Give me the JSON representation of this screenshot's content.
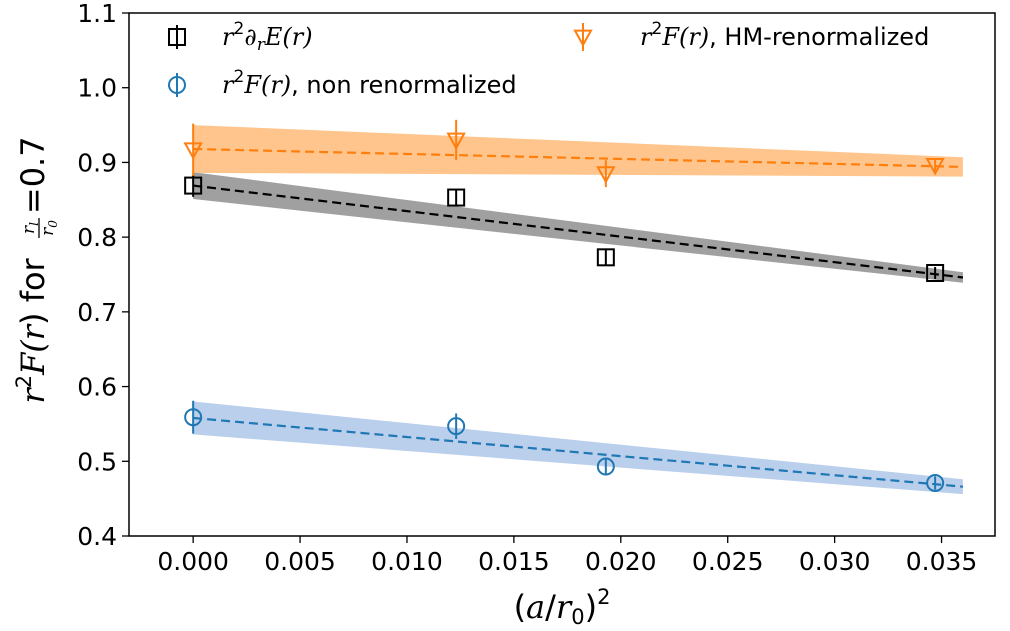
{
  "chart_data": {
    "type": "scatter",
    "xlabel_parts": [
      "(",
      "a",
      "/",
      "r",
      "0",
      ")",
      "2"
    ],
    "ylabel_parts": [
      "r",
      "2",
      "F(",
      "r",
      ") for ",
      "r",
      "l",
      "r",
      "0",
      " =0.7"
    ],
    "xlim": [
      -0.003,
      0.0375
    ],
    "ylim": [
      0.4,
      1.1
    ],
    "xticks": [
      0.0,
      0.005,
      0.01,
      0.015,
      0.02,
      0.025,
      0.03,
      0.035
    ],
    "xtick_labels": [
      "0.000",
      "0.005",
      "0.010",
      "0.015",
      "0.020",
      "0.025",
      "0.030",
      "0.035"
    ],
    "yticks": [
      0.4,
      0.5,
      0.6,
      0.7,
      0.8,
      0.9,
      1.0,
      1.1
    ],
    "ytick_labels": [
      "0.4",
      "0.5",
      "0.6",
      "0.7",
      "0.8",
      "0.9",
      "1.0",
      "1.1"
    ],
    "grid": false,
    "legend_placement": "top",
    "series": [
      {
        "key": "deriv",
        "legend": {
          "main": "r",
          "sup": "2",
          "rest": "∂",
          "sub": "r",
          "tail": "E(r)"
        },
        "marker": "square",
        "color": "#000000",
        "points": [
          {
            "x": 0.0,
            "y": 0.869,
            "err": 0.015
          },
          {
            "x": 0.0123,
            "y": 0.853,
            "err": 0.011
          },
          {
            "x": 0.0193,
            "y": 0.773,
            "err": 0.01
          },
          {
            "x": 0.0347,
            "y": 0.752,
            "err": 0.008
          }
        ],
        "fit": {
          "x0": 0.0,
          "y0": 0.869,
          "x1": 0.036,
          "y1": 0.746
        },
        "band": {
          "upper0": 0.887,
          "lower0": 0.851,
          "upper1": 0.753,
          "lower1": 0.739
        },
        "band_color": "#808080"
      },
      {
        "key": "nonren",
        "legend": {
          "main": "r",
          "sup": "2",
          "rest": "F(r)",
          "tail": ", non renormalized"
        },
        "marker": "circle",
        "color": "#1f77b4",
        "points": [
          {
            "x": 0.0,
            "y": 0.559,
            "err": 0.022
          },
          {
            "x": 0.0123,
            "y": 0.547,
            "err": 0.017
          },
          {
            "x": 0.0193,
            "y": 0.493,
            "err": 0.011
          },
          {
            "x": 0.0347,
            "y": 0.471,
            "err": 0.009
          }
        ],
        "fit": {
          "x0": 0.0,
          "y0": 0.558,
          "x1": 0.036,
          "y1": 0.466
        },
        "band": {
          "upper0": 0.58,
          "lower0": 0.536,
          "upper1": 0.476,
          "lower1": 0.456
        },
        "band_color": "#aec7e8"
      },
      {
        "key": "hm",
        "legend": {
          "main": "r",
          "sup": "2",
          "rest": "F(r)",
          "tail": ", HM-renormalized"
        },
        "marker": "triangle-down",
        "color": "#ff7f0e",
        "points": [
          {
            "x": 0.0,
            "y": 0.917,
            "err": 0.035
          },
          {
            "x": 0.0123,
            "y": 0.93,
            "err": 0.027
          },
          {
            "x": 0.0193,
            "y": 0.885,
            "err": 0.018
          },
          {
            "x": 0.0347,
            "y": 0.896,
            "err": 0.009
          }
        ],
        "fit": {
          "x0": 0.0,
          "y0": 0.918,
          "x1": 0.036,
          "y1": 0.894
        },
        "band": {
          "upper0": 0.95,
          "lower0": 0.886,
          "upper1": 0.907,
          "lower1": 0.881
        },
        "band_color": "#ffbb78"
      }
    ]
  }
}
